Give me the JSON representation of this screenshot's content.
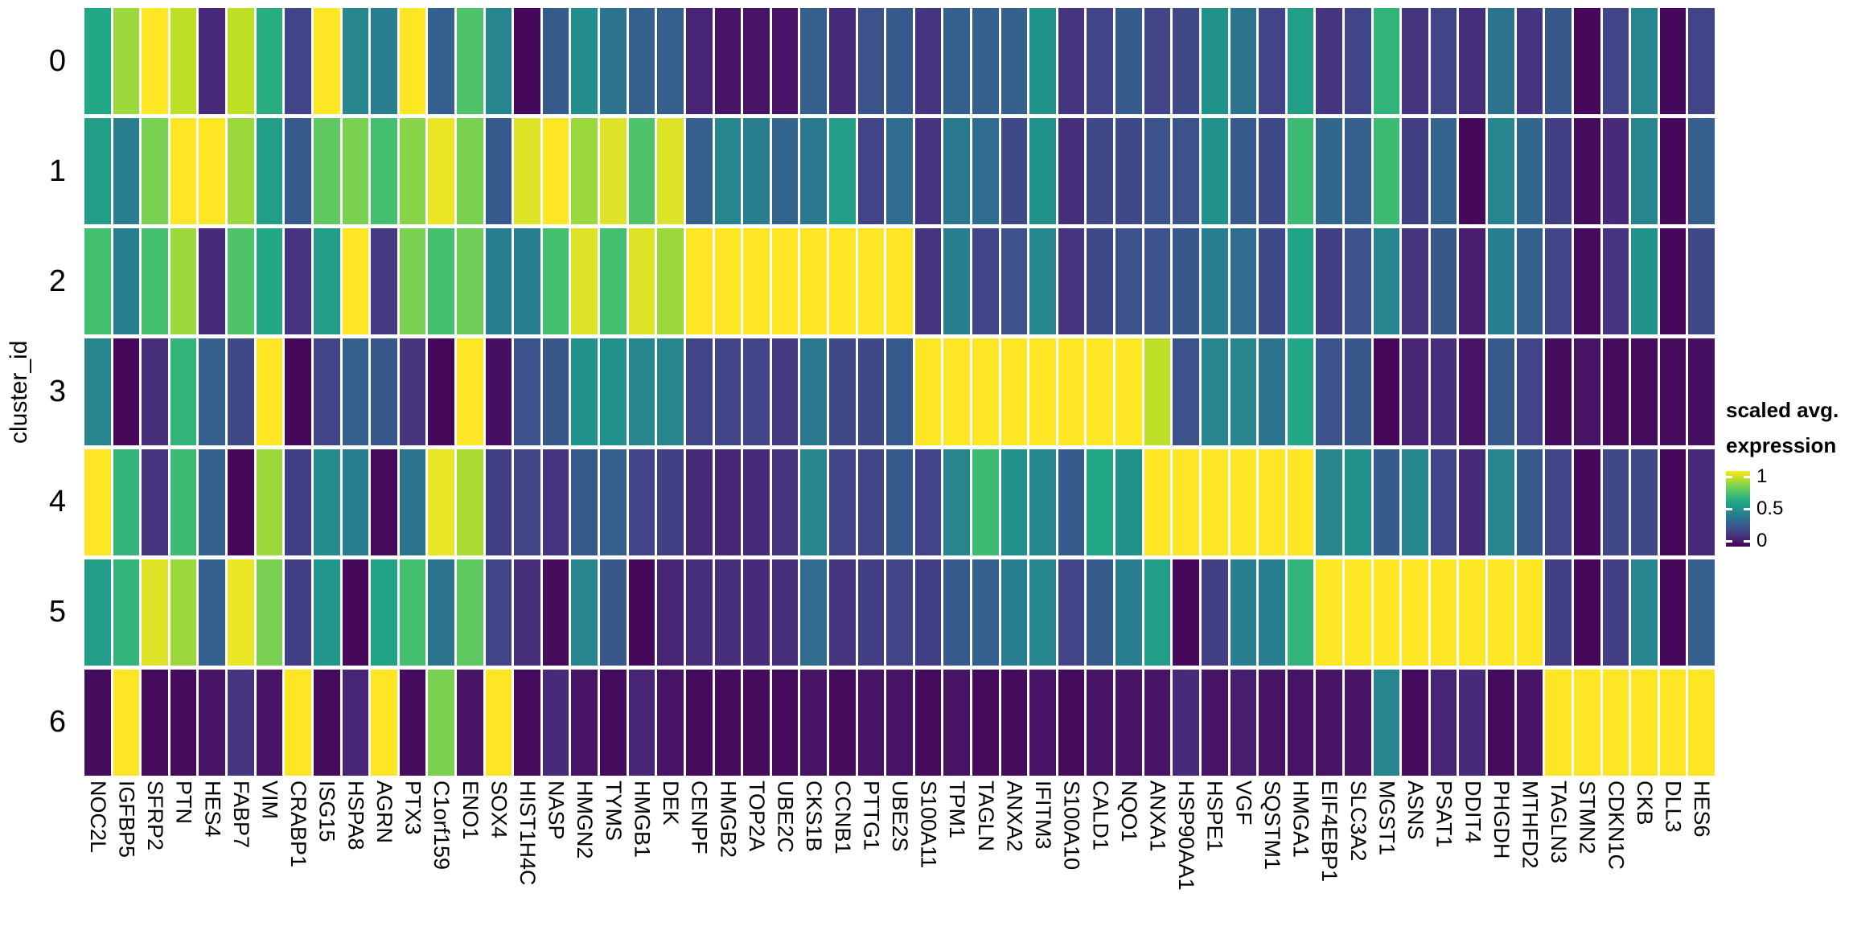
{
  "figure": {
    "y_axis_title": "cluster_id"
  },
  "legend": {
    "title_line1": "scaled avg.",
    "title_line2": "expression",
    "ticks": [
      {
        "label": "1",
        "value": 1
      },
      {
        "label": "0.5",
        "value": 0.5
      },
      {
        "label": "0",
        "value": 0
      }
    ]
  },
  "colors": {
    "background": "#ffffff",
    "text": "#000000",
    "viridis_stops": [
      [
        0.0,
        "#440154"
      ],
      [
        0.1,
        "#482475"
      ],
      [
        0.2,
        "#414487"
      ],
      [
        0.3,
        "#355f8d"
      ],
      [
        0.4,
        "#2a788e"
      ],
      [
        0.5,
        "#21918c"
      ],
      [
        0.6,
        "#22a884"
      ],
      [
        0.7,
        "#44bf70"
      ],
      [
        0.8,
        "#7ad151"
      ],
      [
        0.9,
        "#bddf26"
      ],
      [
        1.0,
        "#fde725"
      ]
    ]
  },
  "chart_data": {
    "type": "heatmap",
    "title": "",
    "xlabel": "",
    "ylabel": "cluster_id",
    "colorbar_title": "scaled avg. expression",
    "value_range": [
      0,
      1
    ],
    "legend_position": "right",
    "grid": false,
    "x": [
      "NOC2L",
      "IGFBP5",
      "SFRP2",
      "PTN",
      "HES4",
      "FABP7",
      "VIM",
      "CRABP1",
      "ISG15",
      "HSPA8",
      "AGRN",
      "PTX3",
      "C1orf159",
      "ENO1",
      "SOX4",
      "HIST1H4C",
      "NASP",
      "HMGN2",
      "TYMS",
      "HMGB1",
      "DEK",
      "CENPF",
      "HMGB2",
      "TOP2A",
      "UBE2C",
      "CKS1B",
      "CCNB1",
      "PTTG1",
      "UBE2S",
      "S100A11",
      "TPM1",
      "TAGLN",
      "ANXA2",
      "IFITM3",
      "S100A10",
      "CALD1",
      "NQO1",
      "ANXA1",
      "HSP90AA1",
      "HSPE1",
      "VGF",
      "SQSTM1",
      "HMGA1",
      "EIF4EBP1",
      "SLC3A2",
      "MGST1",
      "ASNS",
      "PSAT1",
      "DDIT4",
      "PHGDH",
      "MTHFD2",
      "TAGLN3",
      "STMN2",
      "CDKN1C",
      "CKB",
      "DLL3",
      "HES6"
    ],
    "y": [
      "0",
      "1",
      "2",
      "3",
      "4",
      "5",
      "6"
    ],
    "series": [
      {
        "name": "0",
        "values": [
          0.6,
          0.85,
          1.0,
          0.9,
          0.12,
          0.9,
          0.62,
          0.2,
          1.0,
          0.45,
          0.42,
          1.0,
          0.3,
          0.72,
          0.45,
          0.02,
          0.28,
          0.48,
          0.38,
          0.3,
          0.3,
          0.1,
          0.05,
          0.05,
          0.05,
          0.3,
          0.12,
          0.25,
          0.28,
          0.15,
          0.3,
          0.3,
          0.3,
          0.5,
          0.15,
          0.2,
          0.28,
          0.2,
          0.22,
          0.5,
          0.38,
          0.2,
          0.55,
          0.15,
          0.2,
          0.65,
          0.15,
          0.2,
          0.13,
          0.38,
          0.15,
          0.27,
          0.02,
          0.2,
          0.45,
          0.02,
          0.2
        ]
      },
      {
        "name": "1",
        "values": [
          0.55,
          0.42,
          0.8,
          1.0,
          1.0,
          0.85,
          0.55,
          0.28,
          0.75,
          0.8,
          0.7,
          0.82,
          0.97,
          0.8,
          0.28,
          0.95,
          1.0,
          0.85,
          0.95,
          0.72,
          0.95,
          0.3,
          0.45,
          0.42,
          0.32,
          0.4,
          0.55,
          0.2,
          0.35,
          0.15,
          0.4,
          0.35,
          0.22,
          0.5,
          0.13,
          0.22,
          0.22,
          0.25,
          0.25,
          0.5,
          0.28,
          0.22,
          0.68,
          0.33,
          0.3,
          0.68,
          0.18,
          0.32,
          0.02,
          0.45,
          0.33,
          0.18,
          0.03,
          0.12,
          0.45,
          0.02,
          0.3
        ]
      },
      {
        "name": "2",
        "values": [
          0.7,
          0.42,
          0.7,
          0.85,
          0.12,
          0.72,
          0.6,
          0.15,
          0.55,
          1.0,
          0.17,
          0.8,
          0.7,
          0.78,
          0.42,
          0.42,
          0.7,
          0.95,
          0.7,
          0.95,
          0.85,
          1.0,
          1.0,
          1.0,
          1.0,
          1.0,
          1.0,
          1.0,
          1.0,
          0.15,
          0.42,
          0.2,
          0.25,
          0.45,
          0.15,
          0.22,
          0.25,
          0.25,
          0.27,
          0.42,
          0.35,
          0.22,
          0.58,
          0.18,
          0.25,
          0.45,
          0.15,
          0.27,
          0.08,
          0.42,
          0.3,
          0.2,
          0.03,
          0.15,
          0.5,
          0.02,
          0.22
        ]
      },
      {
        "name": "3",
        "values": [
          0.45,
          0.02,
          0.13,
          0.65,
          0.3,
          0.22,
          1.0,
          0.02,
          0.2,
          0.3,
          0.27,
          0.15,
          0.02,
          1.0,
          0.04,
          0.25,
          0.27,
          0.5,
          0.5,
          0.45,
          0.45,
          0.2,
          0.2,
          0.2,
          0.17,
          0.4,
          0.22,
          0.22,
          0.28,
          1.0,
          1.0,
          1.0,
          1.0,
          1.0,
          1.0,
          1.0,
          1.0,
          0.9,
          0.25,
          0.45,
          0.45,
          0.38,
          0.6,
          0.25,
          0.27,
          0.02,
          0.1,
          0.13,
          0.05,
          0.28,
          0.2,
          0.03,
          0.05,
          0.03,
          0.03,
          0.03,
          0.04
        ]
      },
      {
        "name": "4",
        "values": [
          1.0,
          0.65,
          0.15,
          0.68,
          0.3,
          0.02,
          0.85,
          0.18,
          0.48,
          0.42,
          0.03,
          0.38,
          0.97,
          0.87,
          0.18,
          0.2,
          0.15,
          0.28,
          0.3,
          0.2,
          0.18,
          0.12,
          0.1,
          0.12,
          0.15,
          0.45,
          0.2,
          0.2,
          0.28,
          0.2,
          0.45,
          0.68,
          0.5,
          0.45,
          0.28,
          0.6,
          0.5,
          1.0,
          1.0,
          1.0,
          1.0,
          1.0,
          1.0,
          0.45,
          0.5,
          0.28,
          0.45,
          0.2,
          0.12,
          0.45,
          0.28,
          0.2,
          0.02,
          0.22,
          0.22,
          0.02,
          0.12
        ]
      },
      {
        "name": "5",
        "values": [
          0.55,
          0.65,
          0.95,
          0.85,
          0.3,
          0.97,
          0.8,
          0.18,
          0.52,
          0.02,
          0.58,
          0.7,
          0.38,
          0.75,
          0.2,
          0.13,
          0.03,
          0.45,
          0.27,
          0.02,
          0.1,
          0.13,
          0.13,
          0.12,
          0.13,
          0.35,
          0.15,
          0.18,
          0.2,
          0.18,
          0.28,
          0.3,
          0.42,
          0.45,
          0.2,
          0.28,
          0.42,
          0.55,
          0.02,
          0.18,
          0.42,
          0.42,
          0.65,
          1.0,
          1.0,
          1.0,
          1.0,
          1.0,
          1.0,
          1.0,
          1.0,
          0.18,
          0.02,
          0.18,
          0.45,
          0.02,
          0.3
        ]
      },
      {
        "name": "6",
        "values": [
          0.03,
          1.0,
          0.03,
          0.03,
          0.05,
          0.15,
          0.05,
          1.0,
          0.03,
          0.1,
          1.0,
          0.03,
          0.8,
          0.05,
          1.0,
          0.03,
          0.12,
          0.05,
          0.03,
          0.1,
          0.05,
          0.03,
          0.03,
          0.03,
          0.03,
          0.05,
          0.03,
          0.05,
          0.05,
          0.03,
          0.05,
          0.03,
          0.03,
          0.05,
          0.03,
          0.05,
          0.05,
          0.05,
          0.12,
          0.05,
          0.08,
          0.05,
          0.05,
          0.05,
          0.05,
          0.45,
          0.03,
          0.1,
          0.12,
          0.03,
          0.05,
          1.0,
          1.0,
          1.0,
          1.0,
          1.0,
          1.0
        ]
      }
    ]
  }
}
